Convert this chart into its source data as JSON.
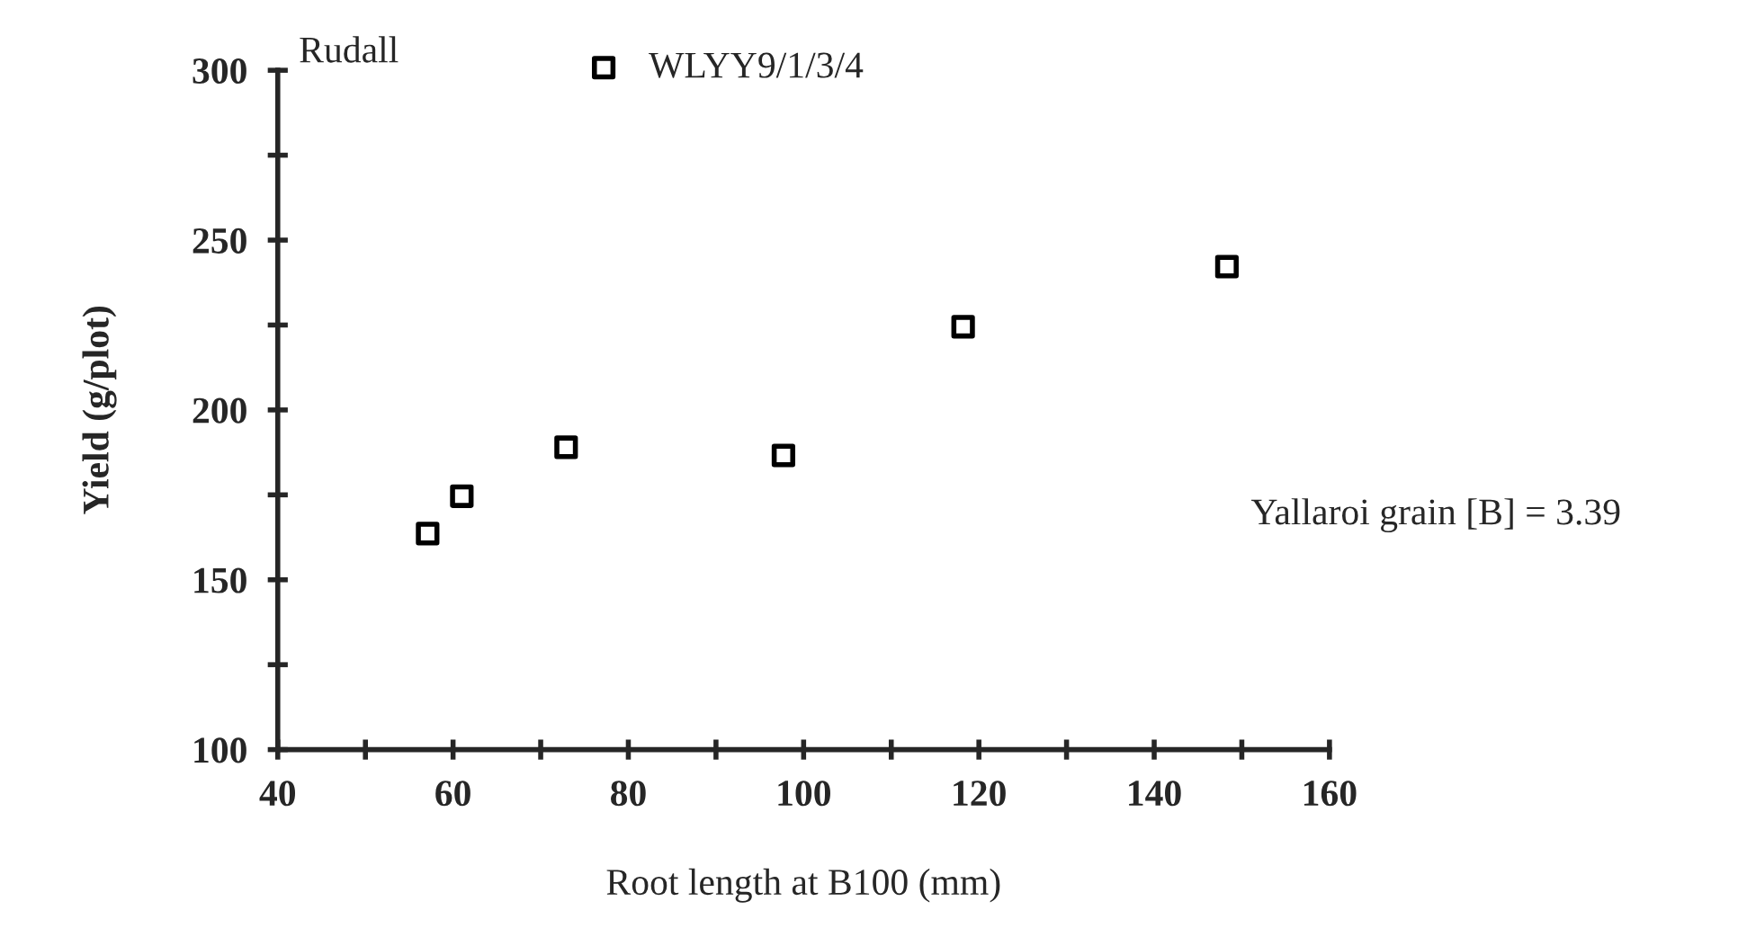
{
  "chart_data": {
    "type": "scatter",
    "title": "Rudall",
    "xlabel": "Root length at B100 (mm)",
    "ylabel": "Yield (g/plot)",
    "series": [
      {
        "name": "WLYY9/1/3/4",
        "color": "#000000",
        "x": [
          57.1,
          61.0,
          72.9,
          97.7,
          118.2,
          148.3
        ],
        "values": [
          163.6,
          174.6,
          189.0,
          186.6,
          224.5,
          242.2
        ]
      }
    ],
    "xlim": [
      40,
      160
    ],
    "xticks": [
      40,
      {
        "value": 50,
        "label": null
      },
      60,
      {
        "value": 70,
        "label": null
      },
      80,
      {
        "value": 90,
        "label": null
      },
      100,
      {
        "value": 110,
        "label": null
      },
      120,
      {
        "value": 130,
        "label": null
      },
      140,
      {
        "value": 150,
        "label": null
      },
      160
    ],
    "ylim": [
      100,
      300
    ],
    "yticks": [
      100,
      {
        "value": 125,
        "label": null
      },
      150,
      {
        "value": 175,
        "label": null
      },
      200,
      {
        "value": 225,
        "label": null
      },
      250,
      {
        "value": 275,
        "label": null
      },
      300
    ],
    "annotations": [
      "Yallaroi grain [B] = 3.39"
    ],
    "marker": "square",
    "grid": false,
    "legend": "top"
  }
}
